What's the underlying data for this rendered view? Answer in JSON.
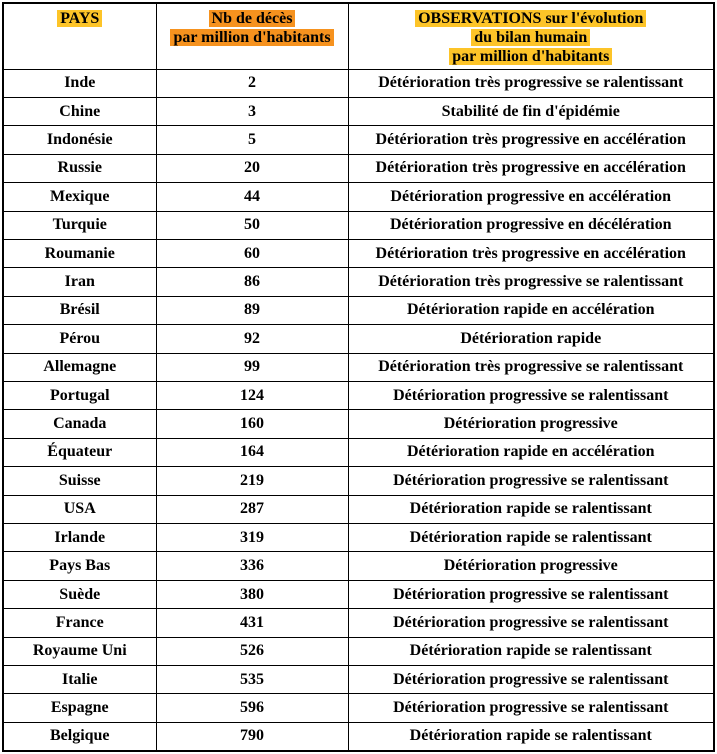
{
  "header": {
    "pays": "PAYS",
    "deaths_line1": "Nb de décès",
    "deaths_line2": "par million d'habitants",
    "obs_line1": "OBSERVATIONS sur l'évolution",
    "obs_line2": "du bilan humain",
    "obs_line3": "par million d'habitants"
  },
  "colors": {
    "yellow_highlight": "#FDC428",
    "orange_highlight": "#F6921E",
    "border": "#000000",
    "text": "#000000"
  },
  "rows": [
    {
      "country": "Inde",
      "deaths": "2",
      "observation": "Détérioration très progressive se ralentissant"
    },
    {
      "country": "Chine",
      "deaths": "3",
      "observation": "Stabilité de fin d'épidémie"
    },
    {
      "country": "Indonésie",
      "deaths": "5",
      "observation": "Détérioration très progressive en accélération"
    },
    {
      "country": "Russie",
      "deaths": "20",
      "observation": "Détérioration très progressive en accélération"
    },
    {
      "country": "Mexique",
      "deaths": "44",
      "observation": "Détérioration progressive en accélération"
    },
    {
      "country": "Turquie",
      "deaths": "50",
      "observation": "Détérioration progressive en décélération"
    },
    {
      "country": "Roumanie",
      "deaths": "60",
      "observation": "Détérioration très progressive en accélération"
    },
    {
      "country": "Iran",
      "deaths": "86",
      "observation": "Détérioration très progressive se ralentissant"
    },
    {
      "country": "Brésil",
      "deaths": "89",
      "observation": "Détérioration rapide en accélération"
    },
    {
      "country": "Pérou",
      "deaths": "92",
      "observation": "Détérioration rapide"
    },
    {
      "country": "Allemagne",
      "deaths": "99",
      "observation": "Détérioration très progressive se ralentissant"
    },
    {
      "country": "Portugal",
      "deaths": "124",
      "observation": "Détérioration progressive se ralentissant"
    },
    {
      "country": "Canada",
      "deaths": "160",
      "observation": "Détérioration progressive"
    },
    {
      "country": "Équateur",
      "deaths": "164",
      "observation": "Détérioration rapide en accélération"
    },
    {
      "country": "Suisse",
      "deaths": "219",
      "observation": "Détérioration progressive se ralentissant"
    },
    {
      "country": "USA",
      "deaths": "287",
      "observation": "Détérioration rapide se ralentissant"
    },
    {
      "country": "Irlande",
      "deaths": "319",
      "observation": "Détérioration rapide se ralentissant"
    },
    {
      "country": "Pays Bas",
      "deaths": "336",
      "observation": "Détérioration progressive"
    },
    {
      "country": "Suède",
      "deaths": "380",
      "observation": "Détérioration progressive se ralentissant"
    },
    {
      "country": "France",
      "deaths": "431",
      "observation": "Détérioration progressive se ralentissant"
    },
    {
      "country": "Royaume Uni",
      "deaths": "526",
      "observation": "Détérioration rapide se ralentissant"
    },
    {
      "country": "Italie",
      "deaths": "535",
      "observation": "Détérioration progressive se ralentissant"
    },
    {
      "country": "Espagne",
      "deaths": "596",
      "observation": "Détérioration progressive se ralentissant"
    },
    {
      "country": "Belgique",
      "deaths": "790",
      "observation": "Détérioration rapide se ralentissant"
    }
  ],
  "chart_data": {
    "type": "table",
    "title": "Nb de décès par million d'habitants par pays",
    "columns": [
      "PAYS",
      "Nb de décès par million d'habitants",
      "OBSERVATIONS sur l'évolution du bilan humain par million d'habitants"
    ],
    "categories": [
      "Inde",
      "Chine",
      "Indonésie",
      "Russie",
      "Mexique",
      "Turquie",
      "Roumanie",
      "Iran",
      "Brésil",
      "Pérou",
      "Allemagne",
      "Portugal",
      "Canada",
      "Équateur",
      "Suisse",
      "USA",
      "Irlande",
      "Pays Bas",
      "Suède",
      "France",
      "Royaume Uni",
      "Italie",
      "Espagne",
      "Belgique"
    ],
    "values": [
      2,
      3,
      5,
      20,
      44,
      50,
      60,
      86,
      89,
      92,
      99,
      124,
      160,
      164,
      219,
      287,
      319,
      336,
      380,
      431,
      526,
      535,
      596,
      790
    ]
  }
}
